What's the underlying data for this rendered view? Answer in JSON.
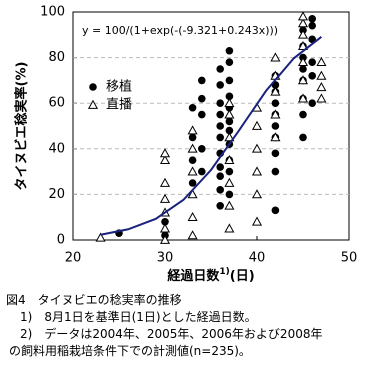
{
  "chart_data": {
    "type": "scatter",
    "annotation": "y = 100/(1+exp(-(-9.321+0.243x)))",
    "x_label": "経過日数",
    "x_label_note": "1)",
    "x_label_unit": "(日)",
    "y_label": "タイヌビエ稔実率(%)",
    "xlim": [
      20,
      50
    ],
    "xticks": [
      20,
      30,
      40,
      50
    ],
    "ylim": [
      0,
      100
    ],
    "yticks": [
      0,
      20,
      40,
      60,
      80,
      100
    ],
    "grid": true,
    "legend": "left",
    "series": [
      {
        "name": "移植",
        "marker": "circle",
        "color": "#000000",
        "x": [
          25,
          30,
          30,
          33,
          33,
          33,
          33,
          34,
          34,
          34,
          34,
          34,
          36,
          36,
          36,
          36,
          36,
          36,
          36,
          36,
          36,
          36,
          36,
          37,
          37,
          37,
          37,
          37,
          37,
          37,
          37,
          37,
          37,
          37,
          42,
          42,
          42,
          42,
          42,
          42,
          42,
          42,
          42,
          42,
          45,
          45,
          45,
          45,
          45,
          45,
          45,
          45,
          46,
          46,
          46,
          46,
          46,
          46
        ],
        "values": [
          3,
          8,
          2,
          25,
          35,
          45,
          58,
          30,
          40,
          55,
          62,
          70,
          15,
          22,
          28,
          32,
          38,
          45,
          50,
          55,
          60,
          68,
          75,
          20,
          30,
          35,
          42,
          48,
          52,
          58,
          63,
          70,
          78,
          83,
          13,
          30,
          38,
          45,
          50,
          55,
          60,
          65,
          68,
          72,
          45,
          55,
          62,
          70,
          75,
          80,
          85,
          92,
          60,
          72,
          78,
          88,
          94,
          97
        ]
      },
      {
        "name": "直播",
        "marker": "triangle",
        "color": "#000000",
        "x": [
          23,
          30,
          30,
          30,
          30,
          30,
          30,
          30,
          33,
          33,
          33,
          33,
          33,
          33,
          37,
          37,
          37,
          37,
          37,
          37,
          37,
          40,
          40,
          40,
          40,
          40,
          40,
          42,
          42,
          42,
          42,
          42,
          45,
          45,
          45,
          45,
          45,
          45,
          45,
          47,
          47,
          47,
          47
        ],
        "values": [
          1,
          0,
          5,
          12,
          18,
          25,
          35,
          38,
          2,
          10,
          20,
          30,
          40,
          48,
          5,
          15,
          25,
          35,
          45,
          55,
          60,
          8,
          20,
          30,
          40,
          50,
          58,
          45,
          55,
          65,
          72,
          80,
          62,
          70,
          78,
          85,
          90,
          95,
          98,
          62,
          67,
          72,
          78
        ]
      },
      {
        "marker": "line",
        "color": "#1a237e",
        "x": [
          23,
          26,
          29,
          32,
          35,
          38,
          41,
          44,
          47
        ],
        "values": [
          2.3,
          4.7,
          9.3,
          17.6,
          30.7,
          47.8,
          65.5,
          79.7,
          89.1
        ]
      }
    ]
  },
  "caption": {
    "title": "図4　タイヌビエの稔実率の推移",
    "notes": [
      "1)　8月1日を基準日(1日)とした経過日数。",
      "2)　データは2004年、2005年、2006年および2008年",
      "の飼料用稲栽培条件下での計測値(n=235)。"
    ]
  }
}
